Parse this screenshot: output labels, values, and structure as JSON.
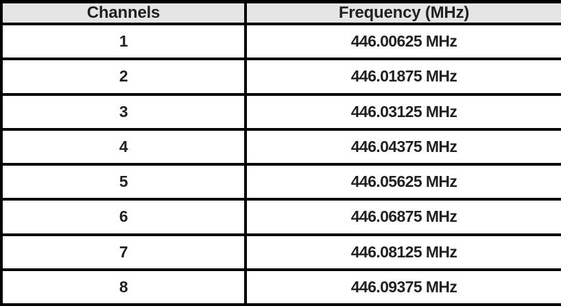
{
  "table": {
    "columns": [
      {
        "label": "Channels"
      },
      {
        "label": "Frequency (MHz)"
      }
    ],
    "rows": [
      {
        "channel": "1",
        "frequency": "446.00625 MHz"
      },
      {
        "channel": "2",
        "frequency": "446.01875 MHz"
      },
      {
        "channel": "3",
        "frequency": "446.03125 MHz"
      },
      {
        "channel": "4",
        "frequency": "446.04375 MHz"
      },
      {
        "channel": "5",
        "frequency": "446.05625 MHz"
      },
      {
        "channel": "6",
        "frequency": "446.06875 MHz"
      },
      {
        "channel": "7",
        "frequency": "446.08125 MHz"
      },
      {
        "channel": "8",
        "frequency": "446.09375 MHz"
      }
    ],
    "colors": {
      "border": "#000000",
      "header_background": "#e5e5e5",
      "cell_background": "#ffffff",
      "text": "#231f20"
    }
  }
}
